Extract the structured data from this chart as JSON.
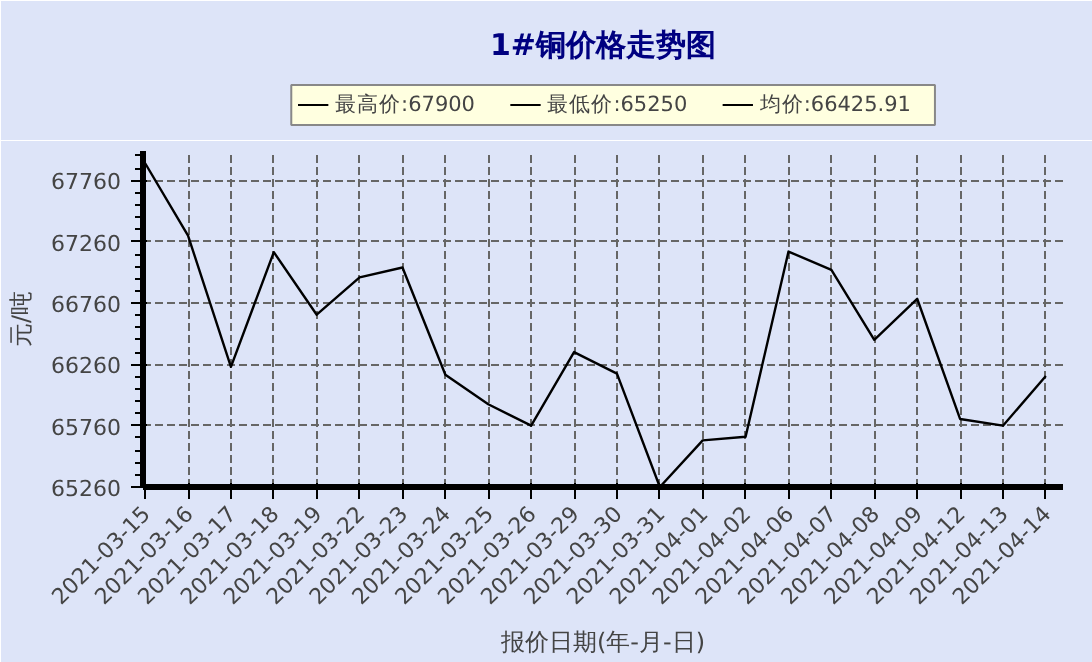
{
  "chart_data": {
    "type": "line",
    "title": "1#铜价格走势图",
    "annotations": [
      "最高价:67900",
      "最低价:65250",
      "均价:66425.91"
    ],
    "xlabel": "报价日期(年-月-日)",
    "ylabel": "元/吨",
    "categories": [
      "2021-03-15",
      "2021-03-16",
      "2021-03-17",
      "2021-03-18",
      "2021-03-19",
      "2021-03-22",
      "2021-03-23",
      "2021-03-24",
      "2021-03-25",
      "2021-03-26",
      "2021-03-29",
      "2021-03-30",
      "2021-03-31",
      "2021-04-01",
      "2021-04-02",
      "2021-04-06",
      "2021-04-07",
      "2021-04-08",
      "2021-04-09",
      "2021-04-12",
      "2021-04-13",
      "2021-04-14"
    ],
    "series": [
      {
        "color": "#000000",
        "values": [
          67900,
          67310,
          66240,
          67175,
          66665,
          66970,
          67050,
          66175,
          65935,
          65760,
          66360,
          66185,
          65260,
          65640,
          65670,
          67180,
          67030,
          66460,
          66795,
          65815,
          65760,
          66165
        ]
      }
    ],
    "ylim": [
      65260,
      68000
    ],
    "yticks": [
      65260,
      65760,
      66260,
      66760,
      67260,
      67760
    ],
    "grid": true,
    "marker": "none",
    "line_style": "solid"
  }
}
